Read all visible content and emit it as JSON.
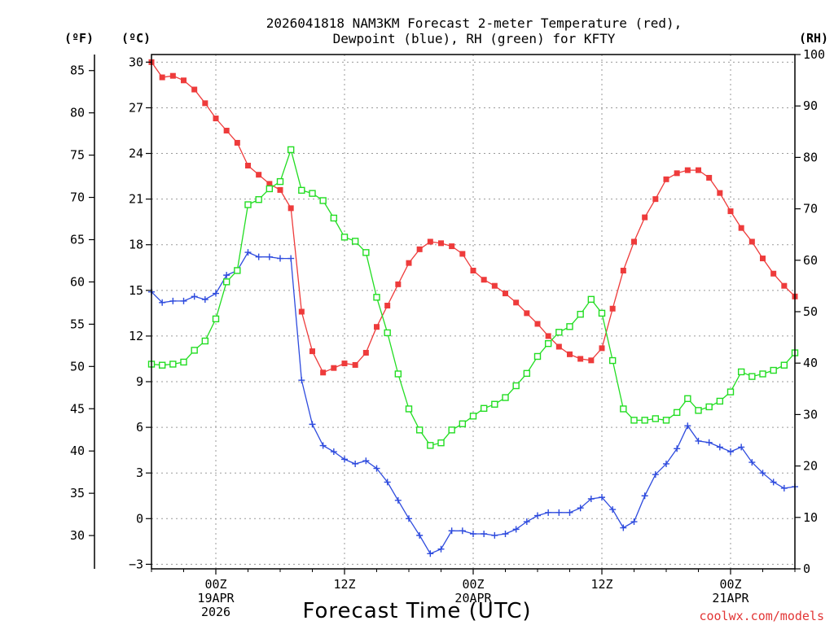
{
  "chart_data": {
    "type": "line",
    "title_lines": [
      "2026041818 NAM3KM Forecast 2-meter Temperature (red),",
      "Dewpoint (blue), RH (green) for KFTY"
    ],
    "xlabel": "Forecast Time (UTC)",
    "credit": "coolwx.com/models",
    "units": {
      "fahrenheit": "(ºF)",
      "celsius": "(ºC)",
      "rh": "(RH)"
    },
    "x_range_hours": [
      0,
      60
    ],
    "x_ticks": [
      {
        "hour": 6,
        "lines": [
          "00Z",
          "19APR",
          "2026"
        ]
      },
      {
        "hour": 18,
        "lines": [
          "12Z"
        ]
      },
      {
        "hour": 30,
        "lines": [
          "00Z",
          "20APR"
        ]
      },
      {
        "hour": 42,
        "lines": [
          "12Z"
        ]
      },
      {
        "hour": 54,
        "lines": [
          "00Z",
          "21APR"
        ]
      }
    ],
    "celsius_axis": {
      "range": [
        -3.3,
        30.5
      ],
      "ticks": [
        "−3",
        "0",
        "3",
        "6",
        "9",
        "12",
        "15",
        "18",
        "21",
        "24",
        "27",
        "30"
      ]
    },
    "fahrenheit_axis": {
      "ticks": [
        "30",
        "35",
        "40",
        "45",
        "50",
        "55",
        "60",
        "65",
        "70",
        "75",
        "80",
        "85"
      ]
    },
    "rh_axis": {
      "range": [
        0,
        100
      ],
      "ticks": [
        "0",
        "10",
        "20",
        "30",
        "40",
        "50",
        "60",
        "70",
        "80",
        "90",
        "100"
      ]
    },
    "series": [
      {
        "name": "Temperature",
        "unit": "C",
        "color": "#ee3b3b",
        "marker": "filled-square",
        "values": [
          30.0,
          29.0,
          29.1,
          28.8,
          28.2,
          27.3,
          26.3,
          25.5,
          24.7,
          23.2,
          22.6,
          22.0,
          21.6,
          20.4,
          13.6,
          11.0,
          9.6,
          9.9,
          10.2,
          10.1,
          10.9,
          12.6,
          14.0,
          15.4,
          16.8,
          17.7,
          18.2,
          18.1,
          17.9,
          17.4,
          16.3,
          15.7,
          15.3,
          14.8,
          14.2,
          13.5,
          12.8,
          12.0,
          11.3,
          10.8,
          10.5,
          10.4,
          11.2,
          13.8,
          16.3,
          18.2,
          19.8,
          21.0,
          22.3,
          22.7,
          22.9,
          22.9,
          22.4,
          21.4,
          20.2,
          19.1,
          18.2,
          17.1,
          16.1,
          15.3,
          14.6
        ]
      },
      {
        "name": "Dewpoint",
        "unit": "C",
        "color": "#2e4bde",
        "marker": "plus",
        "values": [
          14.9,
          14.2,
          14.3,
          14.3,
          14.6,
          14.4,
          14.8,
          16.0,
          16.3,
          17.5,
          17.2,
          17.2,
          17.1,
          17.1,
          9.1,
          6.2,
          4.8,
          4.4,
          3.9,
          3.6,
          3.8,
          3.3,
          2.4,
          1.2,
          0.0,
          -1.1,
          -2.3,
          -2.0,
          -0.8,
          -0.8,
          -1.0,
          -1.0,
          -1.1,
          -1.0,
          -0.7,
          -0.2,
          0.2,
          0.4,
          0.4,
          0.4,
          0.7,
          1.3,
          1.4,
          0.6,
          -0.6,
          -0.2,
          1.5,
          2.9,
          3.6,
          4.6,
          6.1,
          5.1,
          5.0,
          4.7,
          4.4,
          4.7,
          3.7,
          3.0,
          2.4,
          2.0,
          2.1
        ]
      },
      {
        "name": "RH",
        "unit": "%",
        "color": "#22dd22",
        "marker": "open-square",
        "values": [
          39.8,
          39.6,
          39.8,
          40.2,
          42.5,
          44.3,
          48.6,
          55.8,
          58.0,
          70.8,
          71.8,
          73.9,
          75.3,
          81.5,
          73.6,
          73.0,
          71.6,
          68.2,
          64.5,
          63.7,
          61.5,
          52.8,
          45.9,
          37.9,
          31.1,
          27.0,
          24.0,
          24.5,
          27.0,
          28.2,
          29.7,
          31.2,
          32.0,
          33.3,
          35.6,
          38.0,
          41.3,
          43.8,
          46.0,
          47.1,
          49.5,
          52.4,
          49.7,
          40.5,
          31.1,
          28.9,
          28.9,
          29.2,
          28.9,
          30.4,
          33.1,
          30.8,
          31.5,
          32.6,
          34.4,
          38.3,
          37.4,
          37.9,
          38.6,
          39.6,
          42.0
        ]
      }
    ]
  }
}
